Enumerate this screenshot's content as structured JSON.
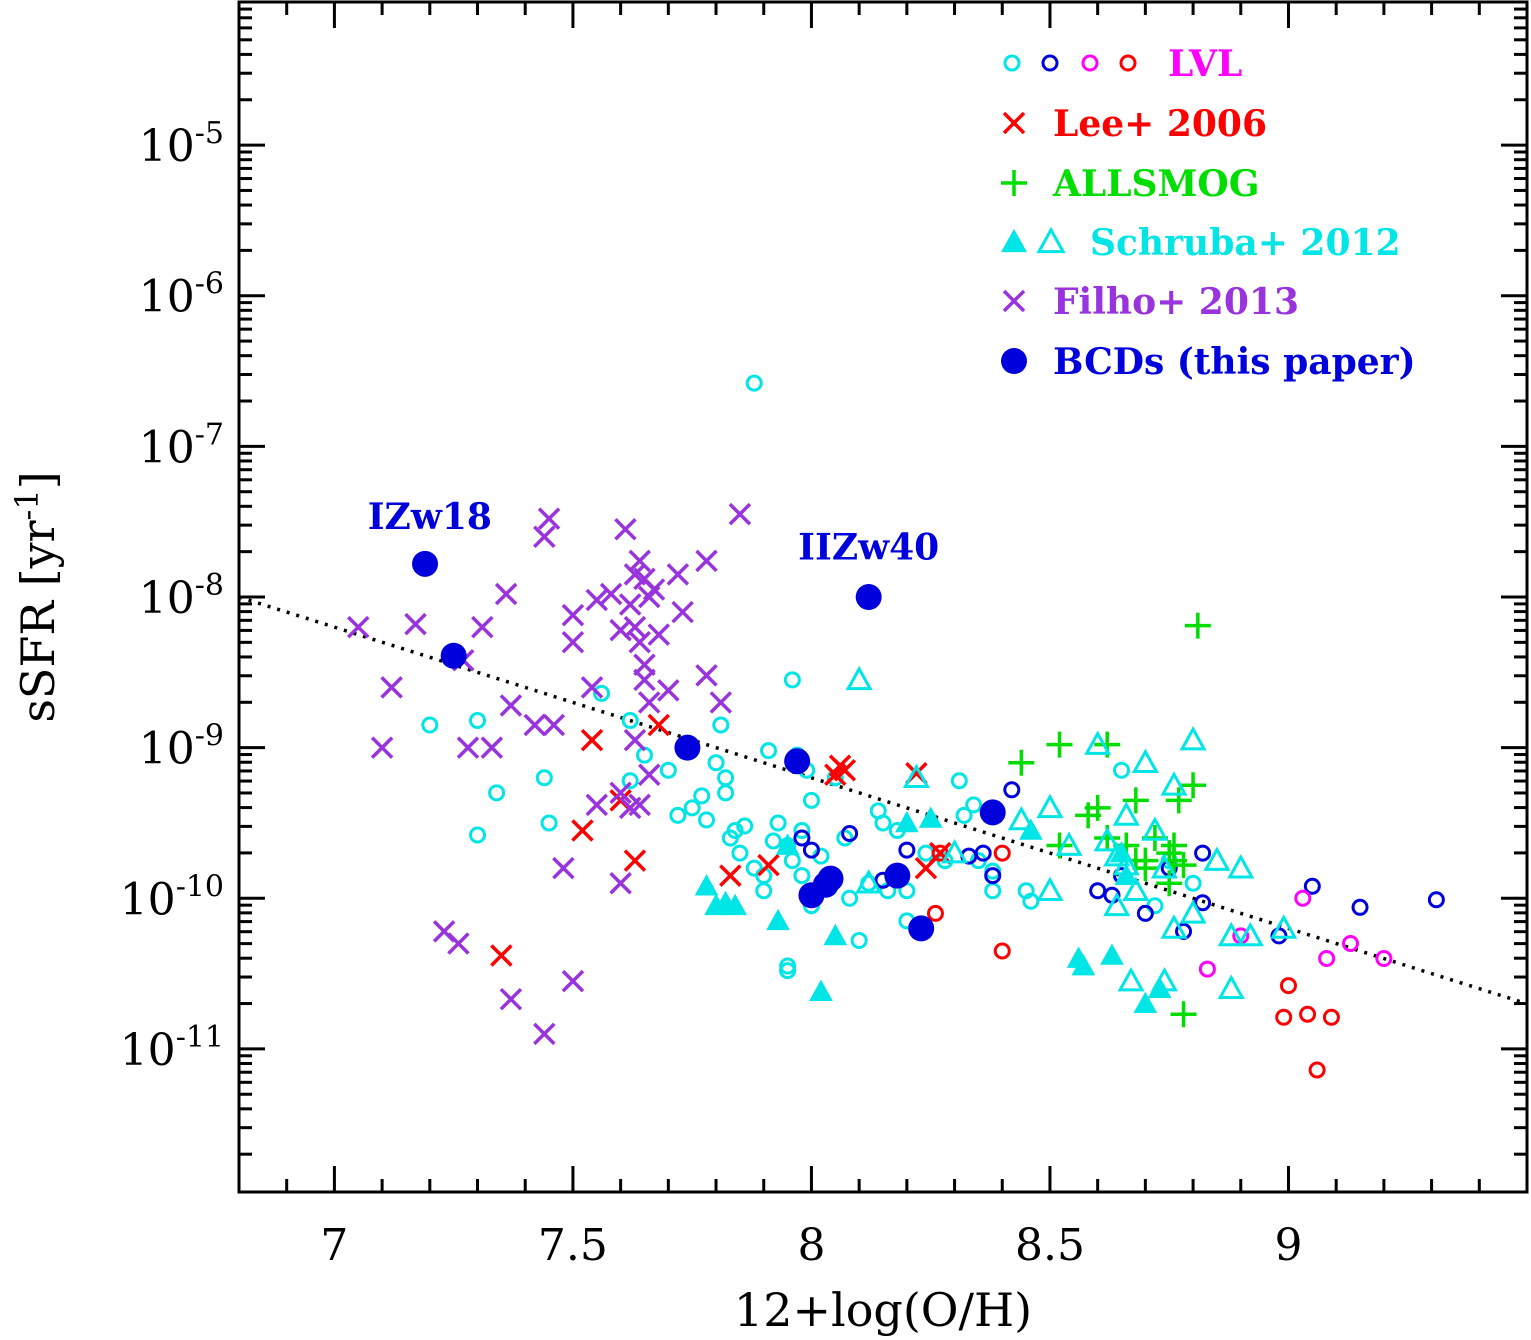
{
  "chart_data": {
    "type": "scatter",
    "xlabel": "12+log(O/H)",
    "ylabel": "sSFR [yr",
    "ylabel_sup": "-1",
    "ylabel_end": "]",
    "xlim": [
      6.8,
      9.5
    ],
    "ylim_log10": [
      -11.95,
      -4.05
    ],
    "y_log_scale": true,
    "x_ticks": [
      7,
      7.5,
      8,
      8.5,
      9
    ],
    "x_tick_labels": [
      "7",
      "7.5",
      "8",
      "8.5",
      "9"
    ],
    "y_ticks": [
      {
        "exp": -5,
        "base": "10",
        "sup": "-5"
      },
      {
        "exp": -6,
        "base": "10",
        "sup": "-6"
      },
      {
        "exp": -7,
        "base": "10",
        "sup": "-7"
      },
      {
        "exp": -8,
        "base": "10",
        "sup": "-8"
      },
      {
        "exp": -9,
        "base": "10",
        "sup": "-9"
      },
      {
        "exp": -10,
        "base": "10",
        "sup": "-10"
      },
      {
        "exp": -11,
        "base": "10",
        "sup": "-11"
      }
    ],
    "fit_line": {
      "x": [
        6.8,
        9.5
      ],
      "log_y": [
        -8.0,
        -10.7
      ],
      "style": "dotted",
      "color": "#000000"
    },
    "legend_position": "top-right",
    "legend": [
      {
        "label": "LVL",
        "color": "#ff00ff",
        "marker": "lvl-circles"
      },
      {
        "label": "Lee+ 2006",
        "color": "#ff0000",
        "marker": "x"
      },
      {
        "label": "ALLSMOG",
        "color": "#00dd00",
        "marker": "plus"
      },
      {
        "label": "Schruba+ 2012",
        "color": "#00e5e5",
        "marker": "triangles"
      },
      {
        "label": "Filho+ 2013",
        "color": "#9933dd",
        "marker": "x"
      },
      {
        "label": "BCDs (this paper)",
        "color": "#0000dd",
        "marker": "filled-circle"
      }
    ],
    "annotations": [
      {
        "text": "IZw18",
        "x": 7.2,
        "log_y": -7.55
      },
      {
        "text": "IIZw40",
        "x": 8.12,
        "log_y": -7.75
      }
    ],
    "series": [
      {
        "name": "LVL",
        "marker": "open-circle",
        "color": "#00e5e5",
        "points": [
          [
            7.2,
            -8.85
          ],
          [
            7.3,
            -8.82
          ],
          [
            7.3,
            -9.58
          ],
          [
            7.44,
            -9.2
          ],
          [
            7.45,
            -9.5
          ],
          [
            7.56,
            -8.64
          ],
          [
            7.62,
            -8.82
          ],
          [
            7.62,
            -9.22
          ],
          [
            7.65,
            -9.05
          ],
          [
            7.7,
            -9.15
          ],
          [
            7.72,
            -9.45
          ],
          [
            7.75,
            -9.4
          ],
          [
            7.77,
            -9.32
          ],
          [
            7.78,
            -9.48
          ],
          [
            7.8,
            -9.1
          ],
          [
            7.81,
            -8.85
          ],
          [
            7.82,
            -9.2
          ],
          [
            7.82,
            -9.3
          ],
          [
            7.83,
            -9.6
          ],
          [
            7.84,
            -9.55
          ],
          [
            7.85,
            -9.7
          ],
          [
            7.86,
            -9.52
          ],
          [
            7.88,
            -6.58
          ],
          [
            7.88,
            -9.8
          ],
          [
            7.9,
            -9.95
          ],
          [
            7.91,
            -9.02
          ],
          [
            7.92,
            -9.62
          ],
          [
            7.93,
            -9.5
          ],
          [
            7.95,
            -9.65
          ],
          [
            7.95,
            -10.48
          ],
          [
            7.96,
            -8.55
          ],
          [
            7.96,
            -9.75
          ],
          [
            7.97,
            -9.05
          ],
          [
            7.98,
            -9.55
          ],
          [
            7.98,
            -9.85
          ],
          [
            8.0,
            -9.35
          ],
          [
            8.0,
            -10.05
          ],
          [
            8.02,
            -9.72
          ],
          [
            8.03,
            -9.9
          ],
          [
            8.05,
            -9.2
          ],
          [
            8.07,
            -9.6
          ],
          [
            8.08,
            -10.0
          ],
          [
            8.1,
            -10.28
          ],
          [
            8.12,
            -9.9
          ],
          [
            8.14,
            -9.42
          ],
          [
            8.15,
            -9.5
          ],
          [
            8.18,
            -9.55
          ],
          [
            8.2,
            -9.95
          ],
          [
            8.2,
            -10.15
          ],
          [
            8.24,
            -9.7
          ],
          [
            8.28,
            -9.75
          ],
          [
            8.31,
            -9.22
          ],
          [
            8.32,
            -9.45
          ],
          [
            8.35,
            -9.75
          ],
          [
            8.38,
            -9.95
          ],
          [
            8.38,
            -9.82
          ],
          [
            8.45,
            -9.95
          ],
          [
            8.46,
            -10.02
          ],
          [
            8.65,
            -9.15
          ],
          [
            8.72,
            -10.05
          ],
          [
            8.75,
            -9.75
          ],
          [
            8.8,
            -9.9
          ],
          [
            7.34,
            -9.3
          ],
          [
            7.9,
            -9.85
          ],
          [
            8.16,
            -9.95
          ],
          [
            7.99,
            -9.15
          ],
          [
            8.34,
            -9.38
          ],
          [
            7.95,
            -10.45
          ]
        ]
      },
      {
        "name": "LVL",
        "marker": "open-circle",
        "color": "#0000dd",
        "points": [
          [
            7.98,
            -9.6
          ],
          [
            8.0,
            -9.68
          ],
          [
            8.08,
            -9.57
          ],
          [
            8.15,
            -9.88
          ],
          [
            8.2,
            -9.68
          ],
          [
            8.33,
            -9.72
          ],
          [
            8.36,
            -9.7
          ],
          [
            8.38,
            -9.85
          ],
          [
            8.42,
            -9.28
          ],
          [
            8.6,
            -9.95
          ],
          [
            8.63,
            -9.98
          ],
          [
            8.65,
            -9.85
          ],
          [
            8.7,
            -10.1
          ],
          [
            8.75,
            -9.8
          ],
          [
            8.78,
            -10.22
          ],
          [
            8.82,
            -9.7
          ],
          [
            8.82,
            -10.03
          ],
          [
            8.98,
            -10.25
          ],
          [
            9.05,
            -9.92
          ],
          [
            9.15,
            -10.06
          ],
          [
            9.31,
            -10.01
          ]
        ]
      },
      {
        "name": "LVL",
        "marker": "open-circle",
        "color": "#ff00ff",
        "points": [
          [
            8.83,
            -10.47
          ],
          [
            8.9,
            -10.25
          ],
          [
            9.03,
            -10.0
          ],
          [
            9.08,
            -10.4
          ],
          [
            9.13,
            -10.3
          ],
          [
            9.2,
            -10.4
          ]
        ]
      },
      {
        "name": "LVL",
        "marker": "open-circle",
        "color": "#ff0000",
        "points": [
          [
            8.26,
            -10.1
          ],
          [
            8.4,
            -10.35
          ],
          [
            8.4,
            -9.7
          ],
          [
            8.99,
            -10.79
          ],
          [
            9.0,
            -10.58
          ],
          [
            9.04,
            -10.77
          ],
          [
            9.06,
            -11.14
          ],
          [
            9.09,
            -10.79
          ],
          [
            8.27,
            -9.7
          ]
        ]
      },
      {
        "name": "Lee+ 2006",
        "marker": "x",
        "color": "#ff0000",
        "points": [
          [
            7.35,
            -10.38
          ],
          [
            7.52,
            -9.55
          ],
          [
            7.54,
            -8.95
          ],
          [
            7.6,
            -9.35
          ],
          [
            7.63,
            -9.75
          ],
          [
            7.68,
            -8.85
          ],
          [
            7.83,
            -9.85
          ],
          [
            7.91,
            -9.78
          ],
          [
            8.05,
            -9.18
          ],
          [
            8.06,
            -9.12
          ],
          [
            8.22,
            -9.17
          ],
          [
            8.24,
            -9.8
          ],
          [
            8.27,
            -9.7
          ],
          [
            8.07,
            -9.15
          ]
        ]
      },
      {
        "name": "ALLSMOG",
        "marker": "plus",
        "color": "#00dd00",
        "points": [
          [
            8.44,
            -9.1
          ],
          [
            8.52,
            -8.98
          ],
          [
            8.52,
            -9.65
          ],
          [
            8.58,
            -9.45
          ],
          [
            8.6,
            -9.4
          ],
          [
            8.62,
            -8.98
          ],
          [
            8.66,
            -9.65
          ],
          [
            8.68,
            -9.35
          ],
          [
            8.68,
            -9.75
          ],
          [
            8.7,
            -9.75
          ],
          [
            8.75,
            -9.7
          ],
          [
            8.76,
            -9.65
          ],
          [
            8.76,
            -9.75
          ],
          [
            8.78,
            -9.78
          ],
          [
            8.78,
            -10.77
          ],
          [
            8.8,
            -9.25
          ],
          [
            8.81,
            -8.19
          ],
          [
            8.77,
            -9.35
          ],
          [
            8.62,
            -9.6
          ],
          [
            8.7,
            -9.8
          ],
          [
            8.75,
            -9.9
          ],
          [
            8.72,
            -9.6
          ]
        ]
      },
      {
        "name": "Schruba+ 2012",
        "marker": "filled-triangle",
        "color": "#00e5e5",
        "points": [
          [
            7.78,
            -9.92
          ],
          [
            7.8,
            -10.05
          ],
          [
            7.82,
            -10.03
          ],
          [
            7.84,
            -10.05
          ],
          [
            7.93,
            -10.15
          ],
          [
            7.95,
            -9.65
          ],
          [
            8.02,
            -10.62
          ],
          [
            8.05,
            -10.25
          ],
          [
            8.2,
            -9.5
          ],
          [
            8.25,
            -9.47
          ],
          [
            8.46,
            -9.55
          ],
          [
            8.56,
            -10.4
          ],
          [
            8.57,
            -10.45
          ],
          [
            8.63,
            -10.38
          ],
          [
            8.65,
            -9.7
          ],
          [
            8.7,
            -10.7
          ],
          [
            8.73,
            -10.6
          ],
          [
            8.66,
            -9.85
          ]
        ]
      },
      {
        "name": "Schruba+ 2012",
        "marker": "open-triangle",
        "color": "#00e5e5",
        "points": [
          [
            8.1,
            -8.55
          ],
          [
            8.12,
            -9.9
          ],
          [
            8.22,
            -9.2
          ],
          [
            8.3,
            -9.7
          ],
          [
            8.44,
            -9.48
          ],
          [
            8.5,
            -9.4
          ],
          [
            8.54,
            -9.65
          ],
          [
            8.6,
            -8.98
          ],
          [
            8.62,
            -9.62
          ],
          [
            8.64,
            -9.72
          ],
          [
            8.66,
            -9.45
          ],
          [
            8.66,
            -9.78
          ],
          [
            8.67,
            -10.55
          ],
          [
            8.68,
            -9.95
          ],
          [
            8.7,
            -9.1
          ],
          [
            8.72,
            -9.55
          ],
          [
            8.74,
            -10.55
          ],
          [
            8.76,
            -9.25
          ],
          [
            8.8,
            -8.95
          ],
          [
            8.8,
            -10.1
          ],
          [
            8.85,
            -9.75
          ],
          [
            8.88,
            -10.6
          ],
          [
            8.88,
            -10.25
          ],
          [
            8.9,
            -9.8
          ],
          [
            8.92,
            -10.25
          ],
          [
            8.99,
            -10.2
          ],
          [
            8.76,
            -10.2
          ],
          [
            8.74,
            -9.8
          ],
          [
            8.64,
            -10.05
          ],
          [
            8.5,
            -9.95
          ]
        ]
      },
      {
        "name": "Filho+ 2013",
        "marker": "x",
        "color": "#9933dd",
        "points": [
          [
            7.05,
            -8.2
          ],
          [
            7.1,
            -9.0
          ],
          [
            7.12,
            -8.6
          ],
          [
            7.17,
            -8.18
          ],
          [
            7.23,
            -10.22
          ],
          [
            7.26,
            -10.3
          ],
          [
            7.27,
            -8.42
          ],
          [
            7.28,
            -9.0
          ],
          [
            7.31,
            -8.2
          ],
          [
            7.33,
            -9.0
          ],
          [
            7.36,
            -7.98
          ],
          [
            7.37,
            -8.72
          ],
          [
            7.37,
            -10.67
          ],
          [
            7.42,
            -8.85
          ],
          [
            7.44,
            -7.6
          ],
          [
            7.44,
            -10.9
          ],
          [
            7.45,
            -7.48
          ],
          [
            7.46,
            -8.85
          ],
          [
            7.48,
            -9.8
          ],
          [
            7.5,
            -10.55
          ],
          [
            7.5,
            -8.12
          ],
          [
            7.5,
            -8.3
          ],
          [
            7.54,
            -8.6
          ],
          [
            7.55,
            -9.38
          ],
          [
            7.55,
            -8.02
          ],
          [
            7.58,
            -7.98
          ],
          [
            7.6,
            -8.22
          ],
          [
            7.6,
            -9.9
          ],
          [
            7.61,
            -7.55
          ],
          [
            7.62,
            -8.05
          ],
          [
            7.62,
            -9.4
          ],
          [
            7.63,
            -7.85
          ],
          [
            7.63,
            -8.2
          ],
          [
            7.63,
            -8.95
          ],
          [
            7.64,
            -8.3
          ],
          [
            7.64,
            -7.76
          ],
          [
            7.65,
            -7.88
          ],
          [
            7.65,
            -8.45
          ],
          [
            7.65,
            -8.55
          ],
          [
            7.66,
            -9.18
          ],
          [
            7.66,
            -8.0
          ],
          [
            7.67,
            -7.95
          ],
          [
            7.68,
            -8.25
          ],
          [
            7.7,
            -8.62
          ],
          [
            7.72,
            -7.85
          ],
          [
            7.73,
            -8.1
          ],
          [
            7.78,
            -7.76
          ],
          [
            7.78,
            -8.52
          ],
          [
            7.81,
            -8.7
          ],
          [
            7.85,
            -7.45
          ],
          [
            7.6,
            -9.3
          ],
          [
            7.64,
            -9.38
          ],
          [
            7.66,
            -8.7
          ]
        ]
      },
      {
        "name": "BCDs (this paper)",
        "marker": "filled-circle",
        "color": "#0000dd",
        "points": [
          [
            7.19,
            -7.78
          ],
          [
            7.25,
            -8.39
          ],
          [
            7.74,
            -9.0
          ],
          [
            7.97,
            -9.09
          ],
          [
            8.0,
            -9.98
          ],
          [
            8.03,
            -9.91
          ],
          [
            8.04,
            -9.87
          ],
          [
            8.12,
            -8.0
          ],
          [
            8.18,
            -9.85
          ],
          [
            8.23,
            -10.2
          ],
          [
            8.38,
            -9.43
          ]
        ]
      }
    ]
  }
}
